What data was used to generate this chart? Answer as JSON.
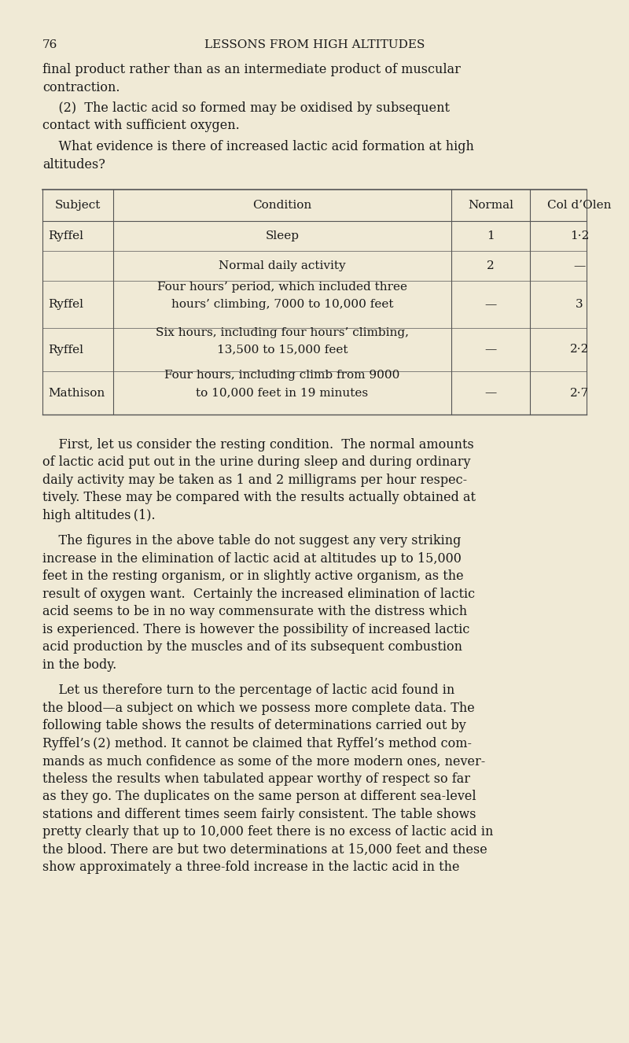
{
  "background_color": "#f0ead6",
  "page_number": "76",
  "header_title": "LESSONS FROM HIGH ALTITUDES",
  "table": {
    "headers": [
      "Subject",
      "Condition",
      "Normal",
      "Col d’Olen"
    ],
    "rows": [
      [
        "Ryffel",
        "Sleep",
        "1",
        "1·2"
      ],
      [
        "",
        "Normal daily activity",
        "2",
        "—"
      ],
      [
        "Ryffel",
        "Four hours’ period, which included three\nhours’ climbing, 7000 to 10,000 feet",
        "—",
        "3"
      ],
      [
        "Ryffel",
        "Six hours, including four hours’ climbing,\n13,500 to 15,000 feet",
        "—",
        "2·2"
      ],
      [
        "Mathison",
        "Four hours, including climb from 9000\nto 10,000 feet in 19 minutes",
        "—",
        "2·7"
      ]
    ]
  },
  "text_color": "#1a1a1a",
  "line_color": "#555555"
}
